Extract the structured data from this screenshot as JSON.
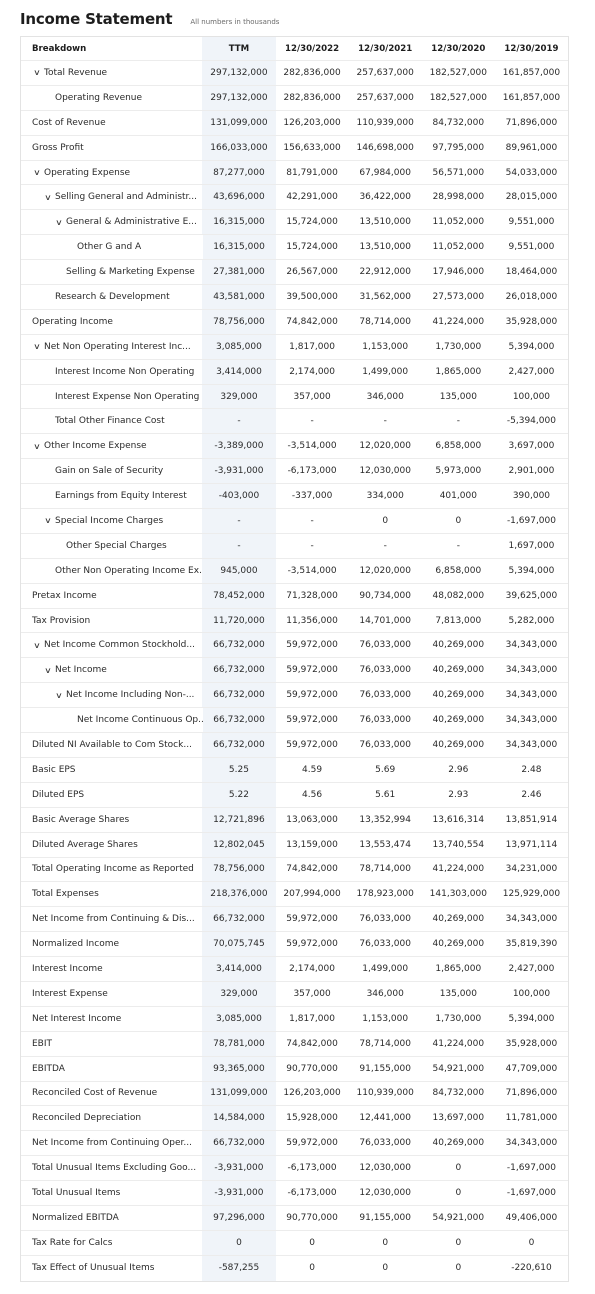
{
  "header": {
    "title": "Income Statement",
    "subtitle": "All numbers in thousands"
  },
  "columns": [
    "Breakdown",
    "TTM",
    "12/30/2022",
    "12/30/2021",
    "12/30/2020",
    "12/30/2019"
  ],
  "rows": [
    {
      "label": "Total Revenue",
      "indent": 0,
      "expandable": true,
      "values": [
        "297,132,000",
        "282,836,000",
        "257,637,000",
        "182,527,000",
        "161,857,000"
      ]
    },
    {
      "label": "Operating Revenue",
      "indent": 1,
      "expandable": false,
      "values": [
        "297,132,000",
        "282,836,000",
        "257,637,000",
        "182,527,000",
        "161,857,000"
      ]
    },
    {
      "label": "Cost of Revenue",
      "indent": 0,
      "expandable": false,
      "values": [
        "131,099,000",
        "126,203,000",
        "110,939,000",
        "84,732,000",
        "71,896,000"
      ]
    },
    {
      "label": "Gross Profit",
      "indent": 0,
      "expandable": false,
      "values": [
        "166,033,000",
        "156,633,000",
        "146,698,000",
        "97,795,000",
        "89,961,000"
      ]
    },
    {
      "label": "Operating Expense",
      "indent": 0,
      "expandable": true,
      "values": [
        "87,277,000",
        "81,791,000",
        "67,984,000",
        "56,571,000",
        "54,033,000"
      ]
    },
    {
      "label": "Selling General and Administr...",
      "indent": 1,
      "expandable": true,
      "values": [
        "43,696,000",
        "42,291,000",
        "36,422,000",
        "28,998,000",
        "28,015,000"
      ]
    },
    {
      "label": "General & Administrative E...",
      "indent": 2,
      "expandable": true,
      "values": [
        "16,315,000",
        "15,724,000",
        "13,510,000",
        "11,052,000",
        "9,551,000"
      ]
    },
    {
      "label": "Other G and A",
      "indent": 3,
      "expandable": false,
      "values": [
        "16,315,000",
        "15,724,000",
        "13,510,000",
        "11,052,000",
        "9,551,000"
      ]
    },
    {
      "label": "Selling & Marketing Expense",
      "indent": 2,
      "expandable": false,
      "values": [
        "27,381,000",
        "26,567,000",
        "22,912,000",
        "17,946,000",
        "18,464,000"
      ]
    },
    {
      "label": "Research & Development",
      "indent": 1,
      "expandable": false,
      "values": [
        "43,581,000",
        "39,500,000",
        "31,562,000",
        "27,573,000",
        "26,018,000"
      ]
    },
    {
      "label": "Operating Income",
      "indent": 0,
      "expandable": false,
      "values": [
        "78,756,000",
        "74,842,000",
        "78,714,000",
        "41,224,000",
        "35,928,000"
      ]
    },
    {
      "label": "Net Non Operating Interest Inc...",
      "indent": 0,
      "expandable": true,
      "values": [
        "3,085,000",
        "1,817,000",
        "1,153,000",
        "1,730,000",
        "5,394,000"
      ]
    },
    {
      "label": "Interest Income Non Operating",
      "indent": 1,
      "expandable": false,
      "values": [
        "3,414,000",
        "2,174,000",
        "1,499,000",
        "1,865,000",
        "2,427,000"
      ]
    },
    {
      "label": "Interest Expense Non Operating",
      "indent": 1,
      "expandable": false,
      "values": [
        "329,000",
        "357,000",
        "346,000",
        "135,000",
        "100,000"
      ]
    },
    {
      "label": "Total Other Finance Cost",
      "indent": 1,
      "expandable": false,
      "values": [
        "-",
        "-",
        "-",
        "-",
        "-5,394,000"
      ]
    },
    {
      "label": "Other Income Expense",
      "indent": 0,
      "expandable": true,
      "values": [
        "-3,389,000",
        "-3,514,000",
        "12,020,000",
        "6,858,000",
        "3,697,000"
      ]
    },
    {
      "label": "Gain on Sale of Security",
      "indent": 1,
      "expandable": false,
      "values": [
        "-3,931,000",
        "-6,173,000",
        "12,030,000",
        "5,973,000",
        "2,901,000"
      ]
    },
    {
      "label": "Earnings from Equity Interest",
      "indent": 1,
      "expandable": false,
      "values": [
        "-403,000",
        "-337,000",
        "334,000",
        "401,000",
        "390,000"
      ]
    },
    {
      "label": "Special Income Charges",
      "indent": 1,
      "expandable": true,
      "values": [
        "-",
        "-",
        "0",
        "0",
        "-1,697,000"
      ]
    },
    {
      "label": "Other Special Charges",
      "indent": 2,
      "expandable": false,
      "values": [
        "-",
        "-",
        "-",
        "-",
        "1,697,000"
      ]
    },
    {
      "label": "Other Non Operating Income Ex...",
      "indent": 1,
      "expandable": false,
      "values": [
        "945,000",
        "-3,514,000",
        "12,020,000",
        "6,858,000",
        "5,394,000"
      ]
    },
    {
      "label": "Pretax Income",
      "indent": 0,
      "expandable": false,
      "values": [
        "78,452,000",
        "71,328,000",
        "90,734,000",
        "48,082,000",
        "39,625,000"
      ]
    },
    {
      "label": "Tax Provision",
      "indent": 0,
      "expandable": false,
      "values": [
        "11,720,000",
        "11,356,000",
        "14,701,000",
        "7,813,000",
        "5,282,000"
      ]
    },
    {
      "label": "Net Income Common Stockhold...",
      "indent": 0,
      "expandable": true,
      "values": [
        "66,732,000",
        "59,972,000",
        "76,033,000",
        "40,269,000",
        "34,343,000"
      ]
    },
    {
      "label": "Net Income",
      "indent": 1,
      "expandable": true,
      "values": [
        "66,732,000",
        "59,972,000",
        "76,033,000",
        "40,269,000",
        "34,343,000"
      ]
    },
    {
      "label": "Net Income Including Non-...",
      "indent": 2,
      "expandable": true,
      "values": [
        "66,732,000",
        "59,972,000",
        "76,033,000",
        "40,269,000",
        "34,343,000"
      ]
    },
    {
      "label": "Net Income Continuous Op...",
      "indent": 3,
      "expandable": false,
      "values": [
        "66,732,000",
        "59,972,000",
        "76,033,000",
        "40,269,000",
        "34,343,000"
      ]
    },
    {
      "label": "Diluted NI Available to Com Stock...",
      "indent": 0,
      "expandable": false,
      "values": [
        "66,732,000",
        "59,972,000",
        "76,033,000",
        "40,269,000",
        "34,343,000"
      ]
    },
    {
      "label": "Basic EPS",
      "indent": 0,
      "expandable": false,
      "values": [
        "5.25",
        "4.59",
        "5.69",
        "2.96",
        "2.48"
      ]
    },
    {
      "label": "Diluted EPS",
      "indent": 0,
      "expandable": false,
      "values": [
        "5.22",
        "4.56",
        "5.61",
        "2.93",
        "2.46"
      ]
    },
    {
      "label": "Basic Average Shares",
      "indent": 0,
      "expandable": false,
      "values": [
        "12,721,896",
        "13,063,000",
        "13,352,994",
        "13,616,314",
        "13,851,914"
      ]
    },
    {
      "label": "Diluted Average Shares",
      "indent": 0,
      "expandable": false,
      "values": [
        "12,802,045",
        "13,159,000",
        "13,553,474",
        "13,740,554",
        "13,971,114"
      ]
    },
    {
      "label": "Total Operating Income as Reported",
      "indent": 0,
      "expandable": false,
      "values": [
        "78,756,000",
        "74,842,000",
        "78,714,000",
        "41,224,000",
        "34,231,000"
      ]
    },
    {
      "label": "Total Expenses",
      "indent": 0,
      "expandable": false,
      "values": [
        "218,376,000",
        "207,994,000",
        "178,923,000",
        "141,303,000",
        "125,929,000"
      ]
    },
    {
      "label": "Net Income from Continuing & Dis...",
      "indent": 0,
      "expandable": false,
      "values": [
        "66,732,000",
        "59,972,000",
        "76,033,000",
        "40,269,000",
        "34,343,000"
      ]
    },
    {
      "label": "Normalized Income",
      "indent": 0,
      "expandable": false,
      "values": [
        "70,075,745",
        "59,972,000",
        "76,033,000",
        "40,269,000",
        "35,819,390"
      ]
    },
    {
      "label": "Interest Income",
      "indent": 0,
      "expandable": false,
      "values": [
        "3,414,000",
        "2,174,000",
        "1,499,000",
        "1,865,000",
        "2,427,000"
      ]
    },
    {
      "label": "Interest Expense",
      "indent": 0,
      "expandable": false,
      "values": [
        "329,000",
        "357,000",
        "346,000",
        "135,000",
        "100,000"
      ]
    },
    {
      "label": "Net Interest Income",
      "indent": 0,
      "expandable": false,
      "values": [
        "3,085,000",
        "1,817,000",
        "1,153,000",
        "1,730,000",
        "5,394,000"
      ]
    },
    {
      "label": "EBIT",
      "indent": 0,
      "expandable": false,
      "values": [
        "78,781,000",
        "74,842,000",
        "78,714,000",
        "41,224,000",
        "35,928,000"
      ]
    },
    {
      "label": "EBITDA",
      "indent": 0,
      "expandable": false,
      "values": [
        "93,365,000",
        "90,770,000",
        "91,155,000",
        "54,921,000",
        "47,709,000"
      ]
    },
    {
      "label": "Reconciled Cost of Revenue",
      "indent": 0,
      "expandable": false,
      "values": [
        "131,099,000",
        "126,203,000",
        "110,939,000",
        "84,732,000",
        "71,896,000"
      ]
    },
    {
      "label": "Reconciled Depreciation",
      "indent": 0,
      "expandable": false,
      "values": [
        "14,584,000",
        "15,928,000",
        "12,441,000",
        "13,697,000",
        "11,781,000"
      ]
    },
    {
      "label": "Net Income from Continuing Oper...",
      "indent": 0,
      "expandable": false,
      "values": [
        "66,732,000",
        "59,972,000",
        "76,033,000",
        "40,269,000",
        "34,343,000"
      ]
    },
    {
      "label": "Total Unusual Items Excluding Goo...",
      "indent": 0,
      "expandable": false,
      "values": [
        "-3,931,000",
        "-6,173,000",
        "12,030,000",
        "0",
        "-1,697,000"
      ]
    },
    {
      "label": "Total Unusual Items",
      "indent": 0,
      "expandable": false,
      "values": [
        "-3,931,000",
        "-6,173,000",
        "12,030,000",
        "0",
        "-1,697,000"
      ]
    },
    {
      "label": "Normalized EBITDA",
      "indent": 0,
      "expandable": false,
      "values": [
        "97,296,000",
        "90,770,000",
        "91,155,000",
        "54,921,000",
        "49,406,000"
      ]
    },
    {
      "label": "Tax Rate for Calcs",
      "indent": 0,
      "expandable": false,
      "values": [
        "0",
        "0",
        "0",
        "0",
        "0"
      ]
    },
    {
      "label": "Tax Effect of Unusual Items",
      "indent": 0,
      "expandable": false,
      "values": [
        "-587,255",
        "0",
        "0",
        "0",
        "-220,610"
      ]
    }
  ]
}
